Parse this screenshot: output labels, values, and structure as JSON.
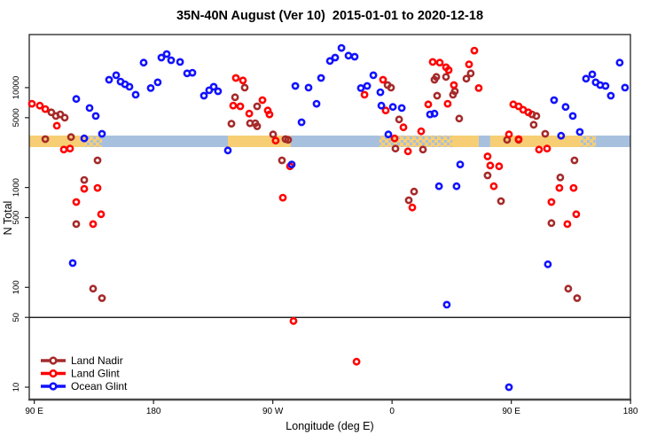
{
  "title": "35N-40N August (Ver 10)  2015-01-01 to 2020-12-18",
  "colors": {
    "land_nadir": "#A52A2A",
    "land_glint": "#FF0000",
    "ocean_glint": "#1111FF",
    "strip_land": "#F7CE74",
    "strip_ocean": "#A7C0DE",
    "box": "#222222",
    "axis_heavy": "#4a4a4a",
    "reference_line": "#000000"
  },
  "chart_data": {
    "type": "scatter",
    "title": "35N-40N August (Ver 10)  2015-01-01 to 2020-12-18",
    "xlabel": "Longitude (deg E)",
    "ylabel": "N Total",
    "x_axis": {
      "note": "longitude axis wraps eastward from 90E; positions are degrees east of 0 unwrapped",
      "range": [
        86,
        540
      ],
      "ticks": [
        {
          "pos": 90,
          "label": "90 E"
        },
        {
          "pos": 180,
          "label": "180"
        },
        {
          "pos": 270,
          "label": "90 W"
        },
        {
          "pos": 360,
          "label": "0"
        },
        {
          "pos": 450,
          "label": "90 E"
        },
        {
          "pos": 540,
          "label": "180"
        }
      ]
    },
    "y_axis": {
      "scale": "log",
      "range": [
        9,
        34000
      ],
      "ticks": [
        10,
        50,
        100,
        500,
        1000,
        5000,
        10000
      ]
    },
    "reference_line": {
      "value": 50
    },
    "surface_strip": {
      "center_value": 3200,
      "segments": [
        {
          "from": 86.2,
          "to": 128.4,
          "surface": "land"
        },
        {
          "from": 128.4,
          "to": 141.1,
          "surface": "mixed"
        },
        {
          "from": 141.1,
          "to": 236.1,
          "surface": "ocean"
        },
        {
          "from": 236.1,
          "to": 283.6,
          "surface": "land"
        },
        {
          "from": 283.6,
          "to": 350.5,
          "surface": "ocean"
        },
        {
          "from": 350.5,
          "to": 405.4,
          "surface": "mixed"
        },
        {
          "from": 405.4,
          "to": 425.4,
          "surface": "land"
        },
        {
          "from": 425.4,
          "to": 434.1,
          "surface": "ocean"
        },
        {
          "from": 434.1,
          "to": 502.4,
          "surface": "land"
        },
        {
          "from": 502.4,
          "to": 513.7,
          "surface": "mixed"
        },
        {
          "from": 513.7,
          "to": 539.8,
          "surface": "ocean"
        }
      ]
    },
    "legend_position": "bottom-left",
    "series": [
      {
        "name": "Land Nadir",
        "color": "#A52A2A",
        "points": [
          [
            102.9,
            5650
          ],
          [
            106.3,
            5200
          ],
          [
            109.6,
            5400
          ],
          [
            113,
            5000
          ],
          [
            98.3,
            3050
          ],
          [
            117.7,
            3200
          ],
          [
            137.7,
            1870
          ],
          [
            127.7,
            1190
          ],
          [
            121.7,
            430
          ],
          [
            134.4,
            97
          ],
          [
            141.1,
            78
          ],
          [
            241.5,
            8000
          ],
          [
            238.8,
            4350
          ],
          [
            248.8,
            10000
          ],
          [
            258.2,
            6500
          ],
          [
            252.8,
            4400
          ],
          [
            256.8,
            4400
          ],
          [
            258.2,
            4100
          ],
          [
            270.2,
            3400
          ],
          [
            279.6,
            3050
          ],
          [
            281.6,
            3000
          ],
          [
            276.9,
            1870
          ],
          [
            356.6,
            10600
          ],
          [
            359.2,
            10000
          ],
          [
            362.6,
            2450
          ],
          [
            383.3,
            2400
          ],
          [
            376.6,
            910
          ],
          [
            372.6,
            745
          ],
          [
            365.3,
            4800
          ],
          [
            394,
            8300
          ],
          [
            392,
            12000
          ],
          [
            393.4,
            12800
          ],
          [
            400.7,
            12800
          ],
          [
            407.4,
            9200
          ],
          [
            406,
            8500
          ],
          [
            416.1,
            12300
          ],
          [
            419.4,
            13900
          ],
          [
            410.7,
            4900
          ],
          [
            432.1,
            1320
          ],
          [
            442.2,
            730
          ],
          [
            446.8,
            3000
          ],
          [
            455.5,
            3000
          ],
          [
            466.9,
            4250
          ],
          [
            465.6,
            5400
          ],
          [
            468.9,
            5200
          ],
          [
            487,
            1260
          ],
          [
            497.7,
            1870
          ],
          [
            480.3,
            440
          ],
          [
            493,
            97
          ],
          [
            499.7,
            78
          ],
          [
            475.6,
            3450
          ]
        ]
      },
      {
        "name": "Land Glint",
        "color": "#FF0000",
        "points": [
          [
            88.2,
            6900
          ],
          [
            94.2,
            6600
          ],
          [
            98.3,
            6100
          ],
          [
            107,
            4150
          ],
          [
            112.3,
            2400
          ],
          [
            117,
            2450
          ],
          [
            127.7,
            970
          ],
          [
            137.7,
            990
          ],
          [
            121.7,
            715
          ],
          [
            140.4,
            540
          ],
          [
            134.4,
            430
          ],
          [
            242.1,
            12500
          ],
          [
            247.5,
            11800
          ],
          [
            240.1,
            6600
          ],
          [
            245.5,
            6500
          ],
          [
            262.2,
            7500
          ],
          [
            252.2,
            5500
          ],
          [
            266.2,
            5900
          ],
          [
            267.5,
            5400
          ],
          [
            272.2,
            2950
          ],
          [
            283,
            1630
          ],
          [
            277.6,
            790
          ],
          [
            285.6,
            46
          ],
          [
            333.2,
            18
          ],
          [
            339.2,
            8500
          ],
          [
            353.2,
            12000
          ],
          [
            355.2,
            5900
          ],
          [
            368.6,
            4000
          ],
          [
            361.9,
            3100
          ],
          [
            372,
            2300
          ],
          [
            375.3,
            630
          ],
          [
            382,
            3650
          ],
          [
            387.3,
            6800
          ],
          [
            402,
            6900
          ],
          [
            390.7,
            18100
          ],
          [
            396,
            17800
          ],
          [
            400.7,
            16000
          ],
          [
            402.7,
            15000
          ],
          [
            418.1,
            17100
          ],
          [
            422.1,
            23500
          ],
          [
            406.7,
            10600
          ],
          [
            425.4,
            9900
          ],
          [
            432.1,
            2050
          ],
          [
            434.1,
            1660
          ],
          [
            440.8,
            1630
          ],
          [
            436.8,
            1030
          ],
          [
            448.2,
            3400
          ],
          [
            455.5,
            3050
          ],
          [
            451.5,
            6800
          ],
          [
            455.5,
            6500
          ],
          [
            458.9,
            6000
          ],
          [
            462.9,
            5650
          ],
          [
            470.9,
            2400
          ],
          [
            477,
            2450
          ],
          [
            486.3,
            990
          ],
          [
            497,
            990
          ],
          [
            480.3,
            715
          ],
          [
            499,
            540
          ],
          [
            492.3,
            430
          ]
        ]
      },
      {
        "name": "Ocean Glint",
        "color": "#1111FF",
        "points": [
          [
            121.7,
            7700
          ],
          [
            131.7,
            6250
          ],
          [
            136.4,
            5200
          ],
          [
            141.1,
            3450
          ],
          [
            127.7,
            3100
          ],
          [
            146.4,
            12000
          ],
          [
            151.8,
            13300
          ],
          [
            155.1,
            11500
          ],
          [
            158.5,
            10800
          ],
          [
            161.8,
            10200
          ],
          [
            166.5,
            8500
          ],
          [
            172.5,
            17800
          ],
          [
            177.9,
            9900
          ],
          [
            183.2,
            11300
          ],
          [
            185.9,
            20000
          ],
          [
            189.9,
            21700
          ],
          [
            193.3,
            18800
          ],
          [
            200,
            18100
          ],
          [
            205.3,
            13900
          ],
          [
            209.3,
            14100
          ],
          [
            218,
            8300
          ],
          [
            222,
            9400
          ],
          [
            225.4,
            10200
          ],
          [
            228.7,
            9200
          ],
          [
            119,
            175
          ],
          [
            236.1,
            2350
          ],
          [
            287,
            10400
          ],
          [
            297,
            10000
          ],
          [
            306.4,
            12500
          ],
          [
            313.1,
            18500
          ],
          [
            317.1,
            20000
          ],
          [
            321.8,
            25000
          ],
          [
            327.1,
            20900
          ],
          [
            331.8,
            20400
          ],
          [
            303,
            6900
          ],
          [
            291.7,
            4500
          ],
          [
            284.3,
            1700
          ],
          [
            336.5,
            9900
          ],
          [
            341.2,
            10400
          ],
          [
            345.9,
            13300
          ],
          [
            351.2,
            9000
          ],
          [
            351.9,
            6600
          ],
          [
            360.6,
            6400
          ],
          [
            367.3,
            6250
          ],
          [
            357.2,
            3400
          ],
          [
            388.7,
            5400
          ],
          [
            392,
            5500
          ],
          [
            395.4,
            1030
          ],
          [
            401.3,
            67
          ],
          [
            411.4,
            1700
          ],
          [
            408.7,
            1030
          ],
          [
            477.6,
            170
          ],
          [
            448.2,
            10
          ],
          [
            482.3,
            7500
          ],
          [
            491,
            6400
          ],
          [
            496.4,
            5200
          ],
          [
            487.6,
            3300
          ],
          [
            501.7,
            3600
          ],
          [
            506.4,
            12300
          ],
          [
            511.1,
            13600
          ],
          [
            513.7,
            11300
          ],
          [
            517.1,
            10600
          ],
          [
            521.1,
            10400
          ],
          [
            525.1,
            8300
          ],
          [
            531.8,
            17800
          ],
          [
            535.8,
            10000
          ]
        ]
      }
    ]
  }
}
